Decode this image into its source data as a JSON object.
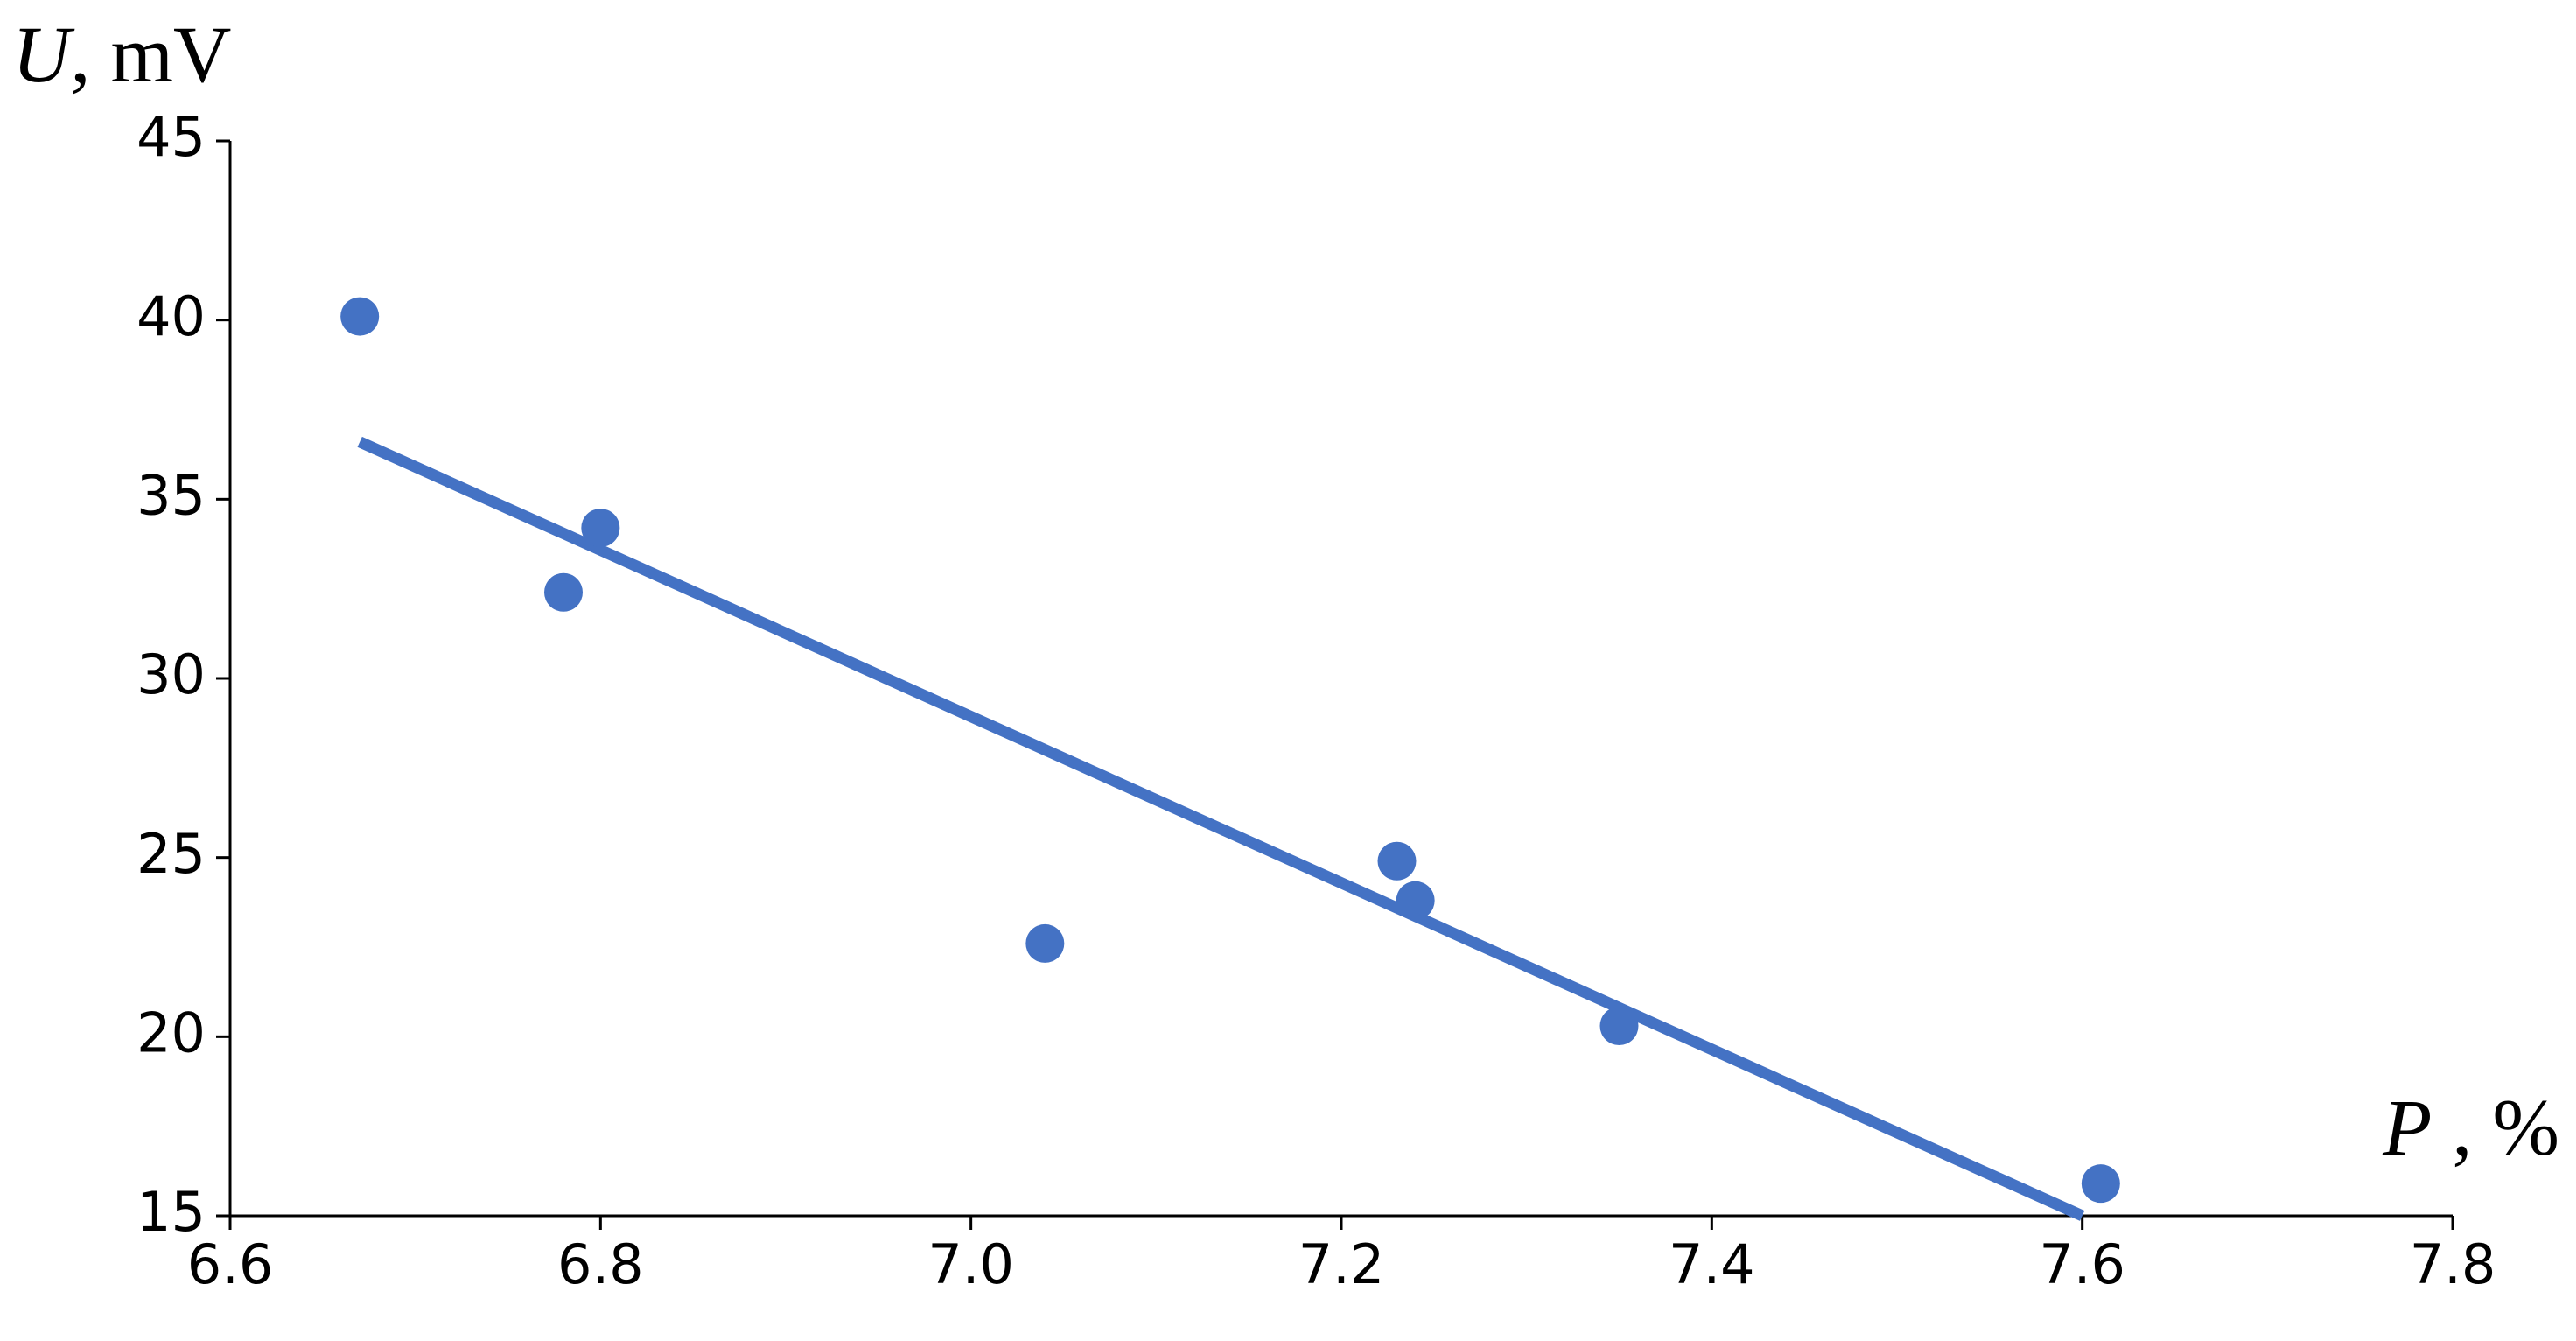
{
  "chart_data": {
    "type": "scatter",
    "ylabel_var": "U",
    "ylabel_unit": ", mV",
    "xlabel_var": "P",
    "xlabel_unit": " , %",
    "x": [
      6.67,
      6.78,
      6.8,
      7.04,
      7.23,
      7.24,
      7.35,
      7.61
    ],
    "values": [
      40.1,
      32.4,
      34.2,
      22.6,
      24.9,
      23.8,
      20.3,
      15.9
    ],
    "color": "#4472c4",
    "trendline": {
      "x": [
        6.67,
        7.6
      ],
      "values": [
        36.6,
        15.0
      ],
      "color": "#4472c4"
    },
    "xlim": [
      6.6,
      7.8
    ],
    "xticks": [
      6.6,
      6.8,
      {
        "value": 7,
        "label": "7.0"
      },
      7.2,
      7.4,
      7.6,
      7.8
    ],
    "ylim": [
      15,
      45
    ],
    "yticks": [
      15,
      20,
      25,
      30,
      35,
      40,
      45
    ],
    "grid": false
  }
}
